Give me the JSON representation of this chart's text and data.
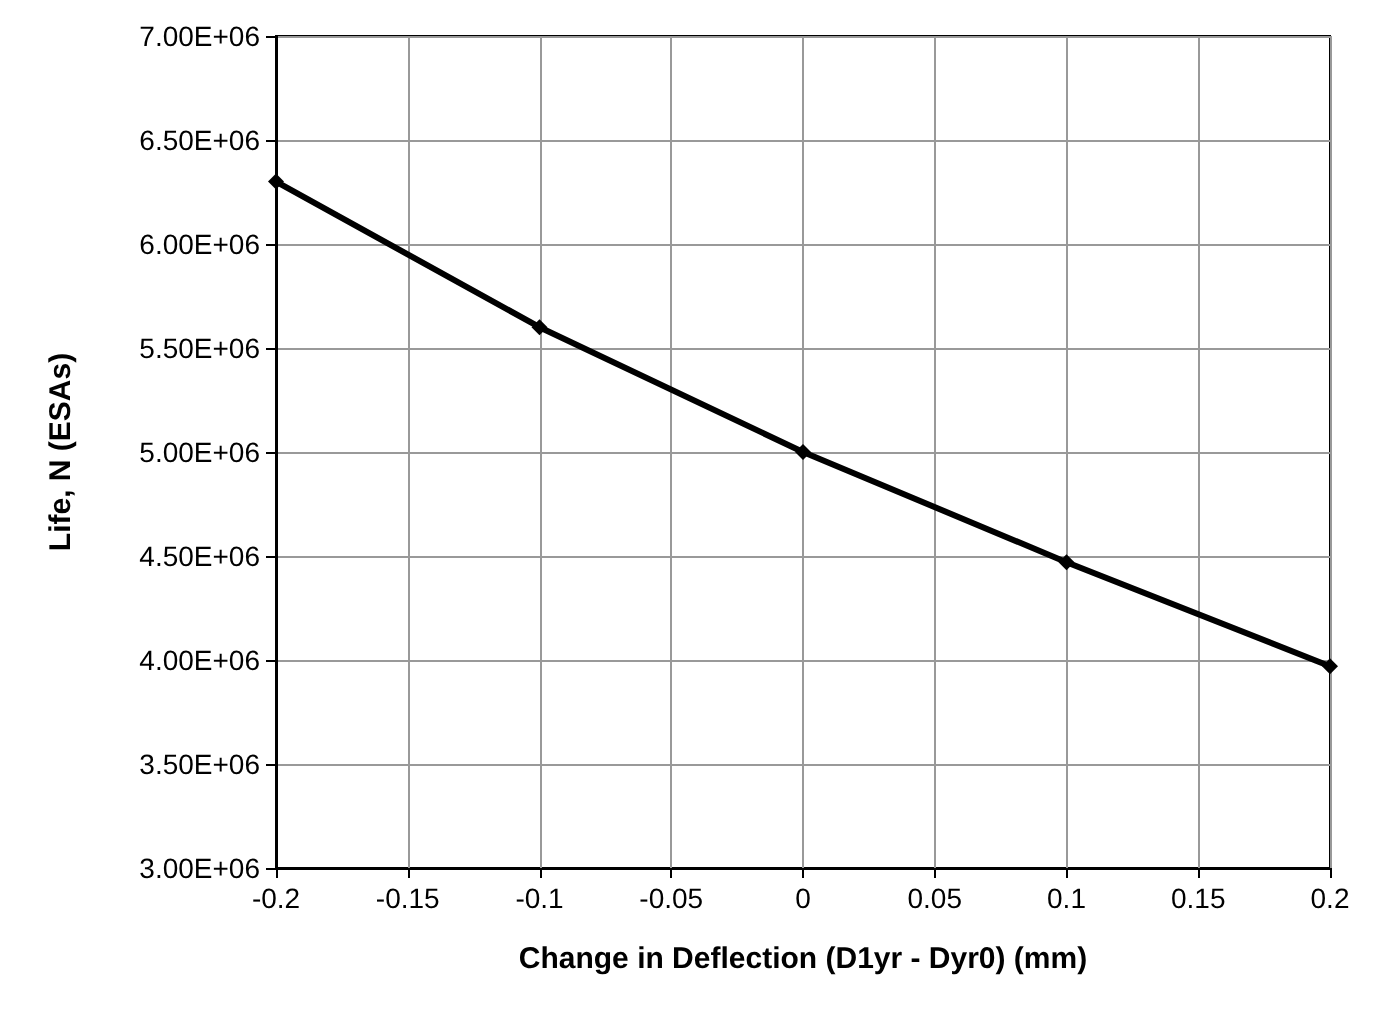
{
  "chart_data": {
    "type": "line",
    "xlabel": "Change in Deflection (D1yr - Dyr0) (mm)",
    "ylabel": "Life, N (ESAs)",
    "x": [
      -0.2,
      -0.1,
      0,
      0.1,
      0.2
    ],
    "series": [
      {
        "color": "#000000",
        "values": [
          6300000,
          5600000,
          5000000,
          4470000,
          3970000
        ]
      }
    ],
    "xlim": [
      -0.2,
      0.2
    ],
    "xticks": [
      -0.2,
      -0.15,
      -0.1,
      -0.05,
      0,
      0.05,
      0.1,
      0.15,
      0.2
    ],
    "ylim": [
      3000000,
      7000000
    ],
    "yticks": [
      {
        "value": 3000000,
        "label": "3.00E+06"
      },
      {
        "value": 3500000,
        "label": "3.50E+06"
      },
      {
        "value": 4000000,
        "label": "4.00E+06"
      },
      {
        "value": 4500000,
        "label": "4.50E+06"
      },
      {
        "value": 5000000,
        "label": "5.00E+06"
      },
      {
        "value": 5500000,
        "label": "5.50E+06"
      },
      {
        "value": 6000000,
        "label": "6.00E+06"
      },
      {
        "value": 6500000,
        "label": "6.50E+06"
      },
      {
        "value": 7000000,
        "label": "7.00E+06"
      }
    ],
    "grid": true,
    "marker": "diamond",
    "line_style": "solid"
  }
}
